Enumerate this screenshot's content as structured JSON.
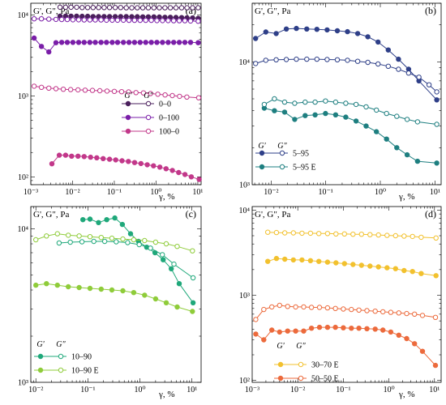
{
  "chart_data": [
    {
      "panel": "(a)",
      "type": "line",
      "ylabel": "G', G\", Pa",
      "xlabel": "γ, %",
      "xscale": "log",
      "yscale": "log",
      "xlim": [
        0.001,
        12
      ],
      "ylim": [
        80,
        14000
      ],
      "x_ticks": [
        0.001,
        0.01,
        0.1,
        1,
        10
      ],
      "x_tick_labels": [
        "10⁻³",
        "10⁻²",
        "10⁻¹",
        "10⁰",
        "10¹"
      ],
      "y_ticks": [
        100,
        1000,
        10000
      ],
      "y_tick_labels": [
        "10²",
        "10³",
        "10⁴"
      ],
      "legend_headers": [
        "G'",
        "G\""
      ],
      "legend_position": "center-right",
      "series": [
        {
          "legend": "0–0",
          "color": "#4a1f5c",
          "filled": true,
          "x": [
            0.005,
            0.0068,
            0.0092,
            0.0125,
            0.017,
            0.023,
            0.031,
            0.042,
            0.057,
            0.077,
            0.105,
            0.142,
            0.193,
            0.262,
            0.355,
            0.482,
            0.654,
            0.888,
            1.2,
            1.63,
            2.2,
            3.0,
            4.1,
            5.5,
            7.5,
            10.2
          ],
          "y": [
            9700,
            9700,
            9700,
            9700,
            9650,
            9650,
            9600,
            9600,
            9600,
            9600,
            9600,
            9600,
            9600,
            9550,
            9550,
            9500,
            9500,
            9500,
            9450,
            9400,
            9400,
            9350,
            9300,
            9250,
            9200,
            9100
          ]
        },
        {
          "legend": "0–0 G\"",
          "color": "#4a1f5c",
          "filled": false,
          "x": [
            0.005,
            0.0068,
            0.0092,
            0.0125,
            0.017,
            0.023,
            0.031,
            0.042,
            0.057,
            0.077,
            0.105,
            0.142,
            0.193,
            0.262,
            0.355,
            0.482,
            0.654,
            0.888,
            1.2,
            1.63,
            2.2,
            3.0,
            4.1,
            5.5,
            7.5,
            10.2
          ],
          "y": [
            12500,
            12500,
            12500,
            12500,
            12400,
            12400,
            12400,
            12400,
            12400,
            12400,
            12400,
            12400,
            12300,
            12300,
            12300,
            12300,
            12300,
            12300,
            12300,
            12300,
            12300,
            12300,
            12300,
            12300,
            12300,
            12300
          ]
        },
        {
          "legend": "0–100",
          "color": "#7a1ea8",
          "filled": true,
          "x": [
            0.0012,
            0.0018,
            0.0027,
            0.004,
            0.0055,
            0.0075,
            0.0102,
            0.014,
            0.019,
            0.026,
            0.035,
            0.048,
            0.065,
            0.089,
            0.12,
            0.165,
            0.225,
            0.305,
            0.415,
            0.565,
            0.77,
            1.05,
            1.43,
            1.95,
            2.65,
            3.6,
            4.9,
            6.7,
            10.2
          ],
          "y": [
            5200,
            4100,
            3500,
            4550,
            4600,
            4600,
            4600,
            4600,
            4600,
            4600,
            4600,
            4600,
            4600,
            4600,
            4600,
            4600,
            4600,
            4600,
            4600,
            4600,
            4600,
            4600,
            4600,
            4600,
            4600,
            4600,
            4600,
            4600,
            4550
          ]
        },
        {
          "legend": "0–100 G\"",
          "color": "#7a1ea8",
          "filled": false,
          "x": [
            0.0012,
            0.0018,
            0.0027,
            0.004,
            0.0055,
            0.0075,
            0.0102,
            0.014,
            0.019,
            0.026,
            0.035,
            0.048,
            0.065,
            0.089,
            0.12,
            0.165,
            0.225,
            0.305,
            0.415,
            0.565,
            0.77,
            1.05,
            1.43,
            1.95,
            2.65,
            3.6,
            4.9,
            6.7,
            10.2
          ],
          "y": [
            9000,
            9000,
            8900,
            8850,
            8800,
            8800,
            8750,
            8750,
            8700,
            8700,
            8700,
            8700,
            8650,
            8650,
            8650,
            8650,
            8600,
            8600,
            8600,
            8600,
            8600,
            8550,
            8550,
            8550,
            8500,
            8500,
            8500,
            8450,
            8400
          ]
        },
        {
          "legend": "100–0",
          "color": "#c2388a",
          "filled": true,
          "x": [
            0.0032,
            0.0048,
            0.0068,
            0.0095,
            0.0135,
            0.019,
            0.027,
            0.038,
            0.054,
            0.077,
            0.108,
            0.153,
            0.217,
            0.307,
            0.435,
            0.615,
            0.87,
            1.23,
            1.74,
            2.46,
            3.48,
            4.93,
            6.97,
            10.8
          ],
          "y": [
            145,
            185,
            185,
            180,
            180,
            178,
            175,
            172,
            168,
            165,
            162,
            158,
            155,
            150,
            146,
            141,
            137,
            132,
            126,
            120,
            113,
            107,
            100,
            93
          ]
        },
        {
          "legend": "100–0 G\"",
          "color": "#c2388a",
          "filled": false,
          "x": [
            0.0012,
            0.0018,
            0.0027,
            0.004,
            0.006,
            0.009,
            0.0135,
            0.02,
            0.03,
            0.045,
            0.067,
            0.1,
            0.15,
            0.22,
            0.33,
            0.5,
            0.74,
            1.1,
            1.65,
            2.45,
            3.65,
            5.45,
            10.5
          ],
          "y": [
            1320,
            1280,
            1250,
            1230,
            1210,
            1200,
            1190,
            1180,
            1170,
            1160,
            1150,
            1140,
            1130,
            1120,
            1100,
            1090,
            1070,
            1050,
            1030,
            1010,
            990,
            970,
            950
          ]
        }
      ]
    },
    {
      "panel": "(b)",
      "type": "line",
      "ylabel": "G', G\", Pa",
      "xlabel": "γ, %",
      "xscale": "log",
      "yscale": "log",
      "xlim": [
        0.0045,
        13
      ],
      "ylim": [
        1000,
        30000
      ],
      "x_ticks": [
        0.01,
        0.1,
        1,
        10
      ],
      "x_tick_labels": [
        "10⁻²",
        "10⁻¹",
        "10⁰",
        "10¹"
      ],
      "y_ticks": [
        1000,
        10000
      ],
      "y_tick_labels": [
        "10³",
        "10⁴"
      ],
      "legend_headers": [
        "G'",
        "G\""
      ],
      "legend_position": "bottom-left",
      "series": [
        {
          "legend": "5–95",
          "color": "#2e3f88",
          "filled": true,
          "x": [
            0.0052,
            0.008,
            0.0124,
            0.019,
            0.029,
            0.045,
            0.069,
            0.106,
            0.163,
            0.25,
            0.385,
            0.59,
            0.91,
            1.4,
            2.15,
            3.3,
            5.1,
            10.8
          ],
          "y": [
            15500,
            17500,
            17000,
            18500,
            18700,
            18500,
            18400,
            18200,
            17900,
            17600,
            17000,
            16000,
            14500,
            12500,
            10500,
            8700,
            7000,
            4900
          ]
        },
        {
          "legend": "5–95 G\"",
          "color": "#2e3f88",
          "filled": false,
          "x": [
            0.0052,
            0.008,
            0.0124,
            0.019,
            0.029,
            0.045,
            0.069,
            0.106,
            0.163,
            0.25,
            0.385,
            0.59,
            0.91,
            1.4,
            2.15,
            3.3,
            5.1,
            7.8,
            10.8
          ],
          "y": [
            9700,
            10300,
            10400,
            10450,
            10500,
            10500,
            10500,
            10450,
            10400,
            10300,
            10100,
            9900,
            9600,
            9200,
            8700,
            8100,
            7500,
            6500,
            5700
          ]
        },
        {
          "legend": "5–95 E",
          "color": "#1e7f80",
          "filled": true,
          "x": [
            0.0075,
            0.0115,
            0.0177,
            0.027,
            0.042,
            0.064,
            0.099,
            0.152,
            0.233,
            0.36,
            0.55,
            0.85,
            1.3,
            2.0,
            3.1,
            4.8,
            10.8
          ],
          "y": [
            4200,
            4000,
            3900,
            3400,
            3650,
            3700,
            3800,
            3700,
            3550,
            3300,
            3000,
            2700,
            2350,
            2000,
            1750,
            1550,
            1500
          ]
        },
        {
          "legend": "5–95 E G\"",
          "color": "#1e7f80",
          "filled": false,
          "x": [
            0.0075,
            0.0115,
            0.0177,
            0.027,
            0.042,
            0.064,
            0.099,
            0.152,
            0.233,
            0.36,
            0.55,
            0.85,
            1.3,
            2.0,
            3.1,
            4.8,
            10.8
          ],
          "y": [
            4500,
            5000,
            4700,
            4600,
            4700,
            4700,
            4800,
            4700,
            4600,
            4500,
            4300,
            4050,
            3800,
            3600,
            3400,
            3250,
            3100
          ]
        }
      ]
    },
    {
      "panel": "(c)",
      "type": "line",
      "ylabel": "G', G\", Pa",
      "xlabel": "γ, %",
      "xscale": "log",
      "yscale": "log",
      "xlim": [
        0.008,
        15
      ],
      "ylim": [
        1000,
        14000
      ],
      "x_ticks": [
        0.01,
        0.1,
        1,
        10
      ],
      "x_tick_labels": [
        "10⁻²",
        "10⁻¹",
        "10⁰",
        "10¹"
      ],
      "y_ticks": [
        1000,
        10000
      ],
      "y_tick_labels": [
        "10³",
        "10⁴"
      ],
      "legend_headers": [
        "G'",
        "G\""
      ],
      "legend_position": "bottom-left",
      "series": [
        {
          "legend": "10–90",
          "color": "#1fa87a",
          "filled": true,
          "x": [
            0.08,
            0.11,
            0.16,
            0.23,
            0.33,
            0.46,
            0.66,
            0.94,
            1.35,
            1.95,
            2.8,
            4.0,
            5.7,
            10.5
          ],
          "y": [
            11500,
            11600,
            11000,
            11500,
            11800,
            10700,
            9300,
            8300,
            7600,
            7000,
            6300,
            5500,
            4400,
            3300
          ]
        },
        {
          "legend": "10–90 G\"",
          "color": "#1fa87a",
          "filled": false,
          "x": [
            0.028,
            0.046,
            0.077,
            0.13,
            0.21,
            0.35,
            0.58,
            0.97,
            1.6,
            2.7,
            4.5,
            10.5
          ],
          "y": [
            8100,
            8200,
            8250,
            8300,
            8300,
            8250,
            8150,
            7900,
            7500,
            6800,
            5900,
            4800
          ]
        },
        {
          "legend": "10–90 E",
          "color": "#8fcc3a",
          "filled": true,
          "x": [
            0.01,
            0.016,
            0.026,
            0.042,
            0.068,
            0.11,
            0.18,
            0.29,
            0.47,
            0.76,
            1.23,
            2.0,
            3.2,
            5.2,
            10.2
          ],
          "y": [
            4300,
            4400,
            4300,
            4200,
            4150,
            4100,
            4050,
            4000,
            3950,
            3850,
            3700,
            3500,
            3300,
            3100,
            2900
          ]
        },
        {
          "legend": "10–90 E G\"",
          "color": "#8fcc3a",
          "filled": false,
          "x": [
            0.01,
            0.016,
            0.026,
            0.042,
            0.068,
            0.11,
            0.18,
            0.29,
            0.47,
            0.76,
            1.23,
            2.0,
            3.2,
            5.2,
            10.2
          ],
          "y": [
            8500,
            9000,
            9300,
            9100,
            9000,
            8900,
            8800,
            8700,
            8600,
            8500,
            8400,
            8200,
            8000,
            7700,
            7200
          ]
        }
      ]
    },
    {
      "panel": "(d)",
      "type": "line",
      "ylabel": "G', G\", Pa",
      "xlabel": "γ, %",
      "xscale": "log",
      "yscale": "log",
      "xlim": [
        0.001,
        14
      ],
      "ylim": [
        95,
        11000
      ],
      "x_ticks": [
        0.001,
        0.01,
        0.1,
        1,
        10
      ],
      "x_tick_labels": [
        "10⁻³",
        "10⁻²",
        "10⁻¹",
        "10⁰",
        "10¹"
      ],
      "y_ticks": [
        100,
        1000,
        10000
      ],
      "y_tick_labels": [
        "10²",
        "10³",
        "10⁴"
      ],
      "legend_headers": [
        "G'",
        "G\""
      ],
      "legend_position": "bottom-center",
      "series": [
        {
          "legend": "30–70 E",
          "color": "#f2c12e",
          "filled": true,
          "x": [
            0.0022,
            0.0034,
            0.0052,
            0.008,
            0.0124,
            0.019,
            0.029,
            0.045,
            0.069,
            0.106,
            0.163,
            0.25,
            0.385,
            0.59,
            0.91,
            1.4,
            2.15,
            3.3,
            5.1,
            10.8
          ],
          "y": [
            2500,
            2700,
            2650,
            2600,
            2600,
            2550,
            2500,
            2450,
            2400,
            2350,
            2300,
            2250,
            2200,
            2150,
            2100,
            2050,
            1950,
            1900,
            1800,
            1700
          ]
        },
        {
          "legend": "30–70 E G\"",
          "color": "#f2c12e",
          "filled": false,
          "x": [
            0.0022,
            0.0034,
            0.0052,
            0.008,
            0.0124,
            0.019,
            0.029,
            0.045,
            0.069,
            0.106,
            0.163,
            0.25,
            0.385,
            0.59,
            0.91,
            1.4,
            2.15,
            3.3,
            5.1,
            10.8
          ],
          "y": [
            5500,
            5450,
            5400,
            5400,
            5350,
            5350,
            5300,
            5300,
            5250,
            5250,
            5200,
            5200,
            5150,
            5100,
            5050,
            5000,
            4950,
            4900,
            4800,
            4700
          ]
        },
        {
          "legend": "50–50 E",
          "color": "#ec6a3c",
          "filled": true,
          "x": [
            0.0012,
            0.0018,
            0.0027,
            0.004,
            0.006,
            0.009,
            0.0135,
            0.02,
            0.03,
            0.045,
            0.067,
            0.1,
            0.15,
            0.22,
            0.33,
            0.5,
            0.74,
            1.1,
            1.65,
            2.45,
            3.65,
            5.45,
            10.5
          ],
          "y": [
            350,
            300,
            390,
            370,
            380,
            380,
            380,
            410,
            420,
            420,
            420,
            415,
            410,
            410,
            405,
            400,
            390,
            370,
            340,
            310,
            270,
            220,
            150
          ]
        },
        {
          "legend": "50–50 E G\"",
          "color": "#ec6a3c",
          "filled": false,
          "x": [
            0.0012,
            0.0018,
            0.0027,
            0.004,
            0.006,
            0.009,
            0.0135,
            0.02,
            0.03,
            0.045,
            0.067,
            0.1,
            0.15,
            0.22,
            0.33,
            0.5,
            0.74,
            1.1,
            1.65,
            2.45,
            3.65,
            5.45,
            10.5
          ],
          "y": [
            520,
            680,
            730,
            760,
            740,
            730,
            730,
            720,
            720,
            710,
            700,
            690,
            680,
            670,
            660,
            650,
            640,
            630,
            620,
            610,
            600,
            580,
            550
          ]
        }
      ]
    }
  ]
}
